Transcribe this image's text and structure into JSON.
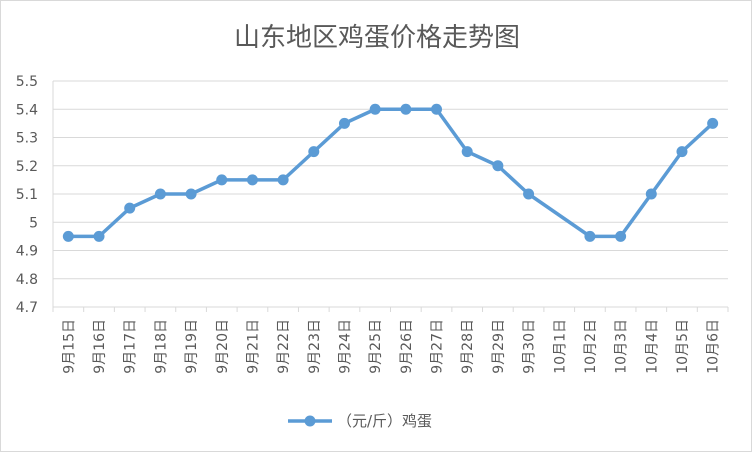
{
  "chart_data": {
    "type": "line",
    "title": "山东地区鸡蛋价格走势图",
    "categories": [
      "9月15日",
      "9月16日",
      "9月17日",
      "9月18日",
      "9月19日",
      "9月20日",
      "9月21日",
      "9月22日",
      "9月23日",
      "9月24日",
      "9月25日",
      "9月26日",
      "9月27日",
      "9月28日",
      "9月29日",
      "9月30日",
      "10月1日",
      "10月2日",
      "10月3日",
      "10月4日",
      "10月5日",
      "10月6日"
    ],
    "series": [
      {
        "name": "（元/斤）鸡蛋",
        "color": "#5b9bd5",
        "values": [
          4.95,
          4.95,
          5.05,
          5.1,
          5.1,
          5.15,
          5.15,
          5.15,
          5.25,
          5.35,
          5.4,
          5.4,
          5.4,
          5.25,
          5.2,
          5.1,
          null,
          4.95,
          4.95,
          5.1,
          5.25,
          5.35
        ]
      }
    ],
    "ylim": [
      4.7,
      5.5
    ],
    "yticks": [
      "4.7",
      "4.8",
      "4.9",
      "5",
      "5.1",
      "5.2",
      "5.3",
      "5.4",
      "5.5"
    ],
    "grid": "horizontal",
    "legend_position": "bottom",
    "line_connects_gaps": true
  }
}
